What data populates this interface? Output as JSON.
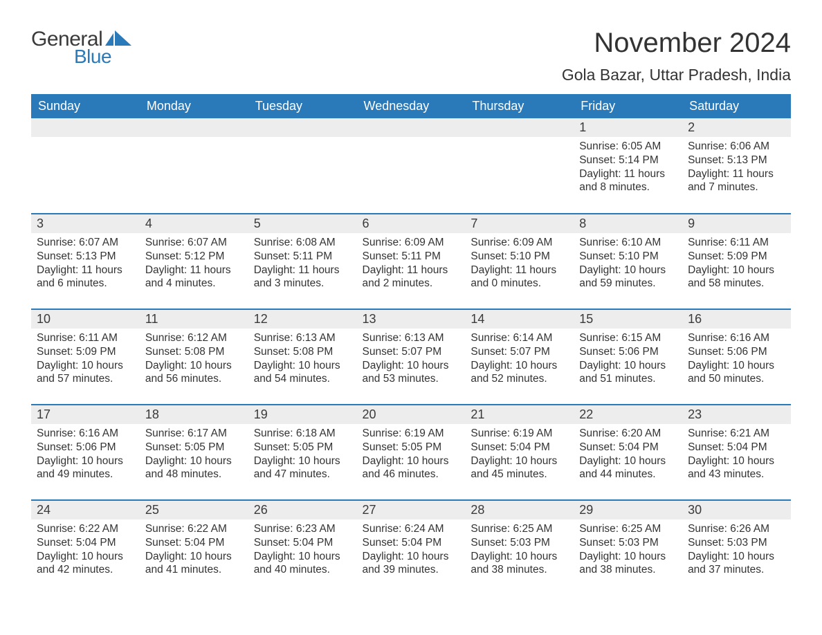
{
  "logo": {
    "text_general": "General",
    "text_blue": "Blue",
    "icon_color": "#2a7ab9"
  },
  "title": "November 2024",
  "location": "Gola Bazar, Uttar Pradesh, India",
  "colors": {
    "header_bg": "#2a7ab9",
    "header_text": "#ffffff",
    "daynum_bg": "#ededed",
    "text": "#333333",
    "row_border": "#2a7ab9"
  },
  "weekdays": [
    "Sunday",
    "Monday",
    "Tuesday",
    "Wednesday",
    "Thursday",
    "Friday",
    "Saturday"
  ],
  "weeks": [
    [
      null,
      null,
      null,
      null,
      null,
      {
        "n": "1",
        "sr": "Sunrise: 6:05 AM",
        "ss": "Sunset: 5:14 PM",
        "dl1": "Daylight: 11 hours",
        "dl2": "and 8 minutes."
      },
      {
        "n": "2",
        "sr": "Sunrise: 6:06 AM",
        "ss": "Sunset: 5:13 PM",
        "dl1": "Daylight: 11 hours",
        "dl2": "and 7 minutes."
      }
    ],
    [
      {
        "n": "3",
        "sr": "Sunrise: 6:07 AM",
        "ss": "Sunset: 5:13 PM",
        "dl1": "Daylight: 11 hours",
        "dl2": "and 6 minutes."
      },
      {
        "n": "4",
        "sr": "Sunrise: 6:07 AM",
        "ss": "Sunset: 5:12 PM",
        "dl1": "Daylight: 11 hours",
        "dl2": "and 4 minutes."
      },
      {
        "n": "5",
        "sr": "Sunrise: 6:08 AM",
        "ss": "Sunset: 5:11 PM",
        "dl1": "Daylight: 11 hours",
        "dl2": "and 3 minutes."
      },
      {
        "n": "6",
        "sr": "Sunrise: 6:09 AM",
        "ss": "Sunset: 5:11 PM",
        "dl1": "Daylight: 11 hours",
        "dl2": "and 2 minutes."
      },
      {
        "n": "7",
        "sr": "Sunrise: 6:09 AM",
        "ss": "Sunset: 5:10 PM",
        "dl1": "Daylight: 11 hours",
        "dl2": "and 0 minutes."
      },
      {
        "n": "8",
        "sr": "Sunrise: 6:10 AM",
        "ss": "Sunset: 5:10 PM",
        "dl1": "Daylight: 10 hours",
        "dl2": "and 59 minutes."
      },
      {
        "n": "9",
        "sr": "Sunrise: 6:11 AM",
        "ss": "Sunset: 5:09 PM",
        "dl1": "Daylight: 10 hours",
        "dl2": "and 58 minutes."
      }
    ],
    [
      {
        "n": "10",
        "sr": "Sunrise: 6:11 AM",
        "ss": "Sunset: 5:09 PM",
        "dl1": "Daylight: 10 hours",
        "dl2": "and 57 minutes."
      },
      {
        "n": "11",
        "sr": "Sunrise: 6:12 AM",
        "ss": "Sunset: 5:08 PM",
        "dl1": "Daylight: 10 hours",
        "dl2": "and 56 minutes."
      },
      {
        "n": "12",
        "sr": "Sunrise: 6:13 AM",
        "ss": "Sunset: 5:08 PM",
        "dl1": "Daylight: 10 hours",
        "dl2": "and 54 minutes."
      },
      {
        "n": "13",
        "sr": "Sunrise: 6:13 AM",
        "ss": "Sunset: 5:07 PM",
        "dl1": "Daylight: 10 hours",
        "dl2": "and 53 minutes."
      },
      {
        "n": "14",
        "sr": "Sunrise: 6:14 AM",
        "ss": "Sunset: 5:07 PM",
        "dl1": "Daylight: 10 hours",
        "dl2": "and 52 minutes."
      },
      {
        "n": "15",
        "sr": "Sunrise: 6:15 AM",
        "ss": "Sunset: 5:06 PM",
        "dl1": "Daylight: 10 hours",
        "dl2": "and 51 minutes."
      },
      {
        "n": "16",
        "sr": "Sunrise: 6:16 AM",
        "ss": "Sunset: 5:06 PM",
        "dl1": "Daylight: 10 hours",
        "dl2": "and 50 minutes."
      }
    ],
    [
      {
        "n": "17",
        "sr": "Sunrise: 6:16 AM",
        "ss": "Sunset: 5:06 PM",
        "dl1": "Daylight: 10 hours",
        "dl2": "and 49 minutes."
      },
      {
        "n": "18",
        "sr": "Sunrise: 6:17 AM",
        "ss": "Sunset: 5:05 PM",
        "dl1": "Daylight: 10 hours",
        "dl2": "and 48 minutes."
      },
      {
        "n": "19",
        "sr": "Sunrise: 6:18 AM",
        "ss": "Sunset: 5:05 PM",
        "dl1": "Daylight: 10 hours",
        "dl2": "and 47 minutes."
      },
      {
        "n": "20",
        "sr": "Sunrise: 6:19 AM",
        "ss": "Sunset: 5:05 PM",
        "dl1": "Daylight: 10 hours",
        "dl2": "and 46 minutes."
      },
      {
        "n": "21",
        "sr": "Sunrise: 6:19 AM",
        "ss": "Sunset: 5:04 PM",
        "dl1": "Daylight: 10 hours",
        "dl2": "and 45 minutes."
      },
      {
        "n": "22",
        "sr": "Sunrise: 6:20 AM",
        "ss": "Sunset: 5:04 PM",
        "dl1": "Daylight: 10 hours",
        "dl2": "and 44 minutes."
      },
      {
        "n": "23",
        "sr": "Sunrise: 6:21 AM",
        "ss": "Sunset: 5:04 PM",
        "dl1": "Daylight: 10 hours",
        "dl2": "and 43 minutes."
      }
    ],
    [
      {
        "n": "24",
        "sr": "Sunrise: 6:22 AM",
        "ss": "Sunset: 5:04 PM",
        "dl1": "Daylight: 10 hours",
        "dl2": "and 42 minutes."
      },
      {
        "n": "25",
        "sr": "Sunrise: 6:22 AM",
        "ss": "Sunset: 5:04 PM",
        "dl1": "Daylight: 10 hours",
        "dl2": "and 41 minutes."
      },
      {
        "n": "26",
        "sr": "Sunrise: 6:23 AM",
        "ss": "Sunset: 5:04 PM",
        "dl1": "Daylight: 10 hours",
        "dl2": "and 40 minutes."
      },
      {
        "n": "27",
        "sr": "Sunrise: 6:24 AM",
        "ss": "Sunset: 5:04 PM",
        "dl1": "Daylight: 10 hours",
        "dl2": "and 39 minutes."
      },
      {
        "n": "28",
        "sr": "Sunrise: 6:25 AM",
        "ss": "Sunset: 5:03 PM",
        "dl1": "Daylight: 10 hours",
        "dl2": "and 38 minutes."
      },
      {
        "n": "29",
        "sr": "Sunrise: 6:25 AM",
        "ss": "Sunset: 5:03 PM",
        "dl1": "Daylight: 10 hours",
        "dl2": "and 38 minutes."
      },
      {
        "n": "30",
        "sr": "Sunrise: 6:26 AM",
        "ss": "Sunset: 5:03 PM",
        "dl1": "Daylight: 10 hours",
        "dl2": "and 37 minutes."
      }
    ]
  ]
}
